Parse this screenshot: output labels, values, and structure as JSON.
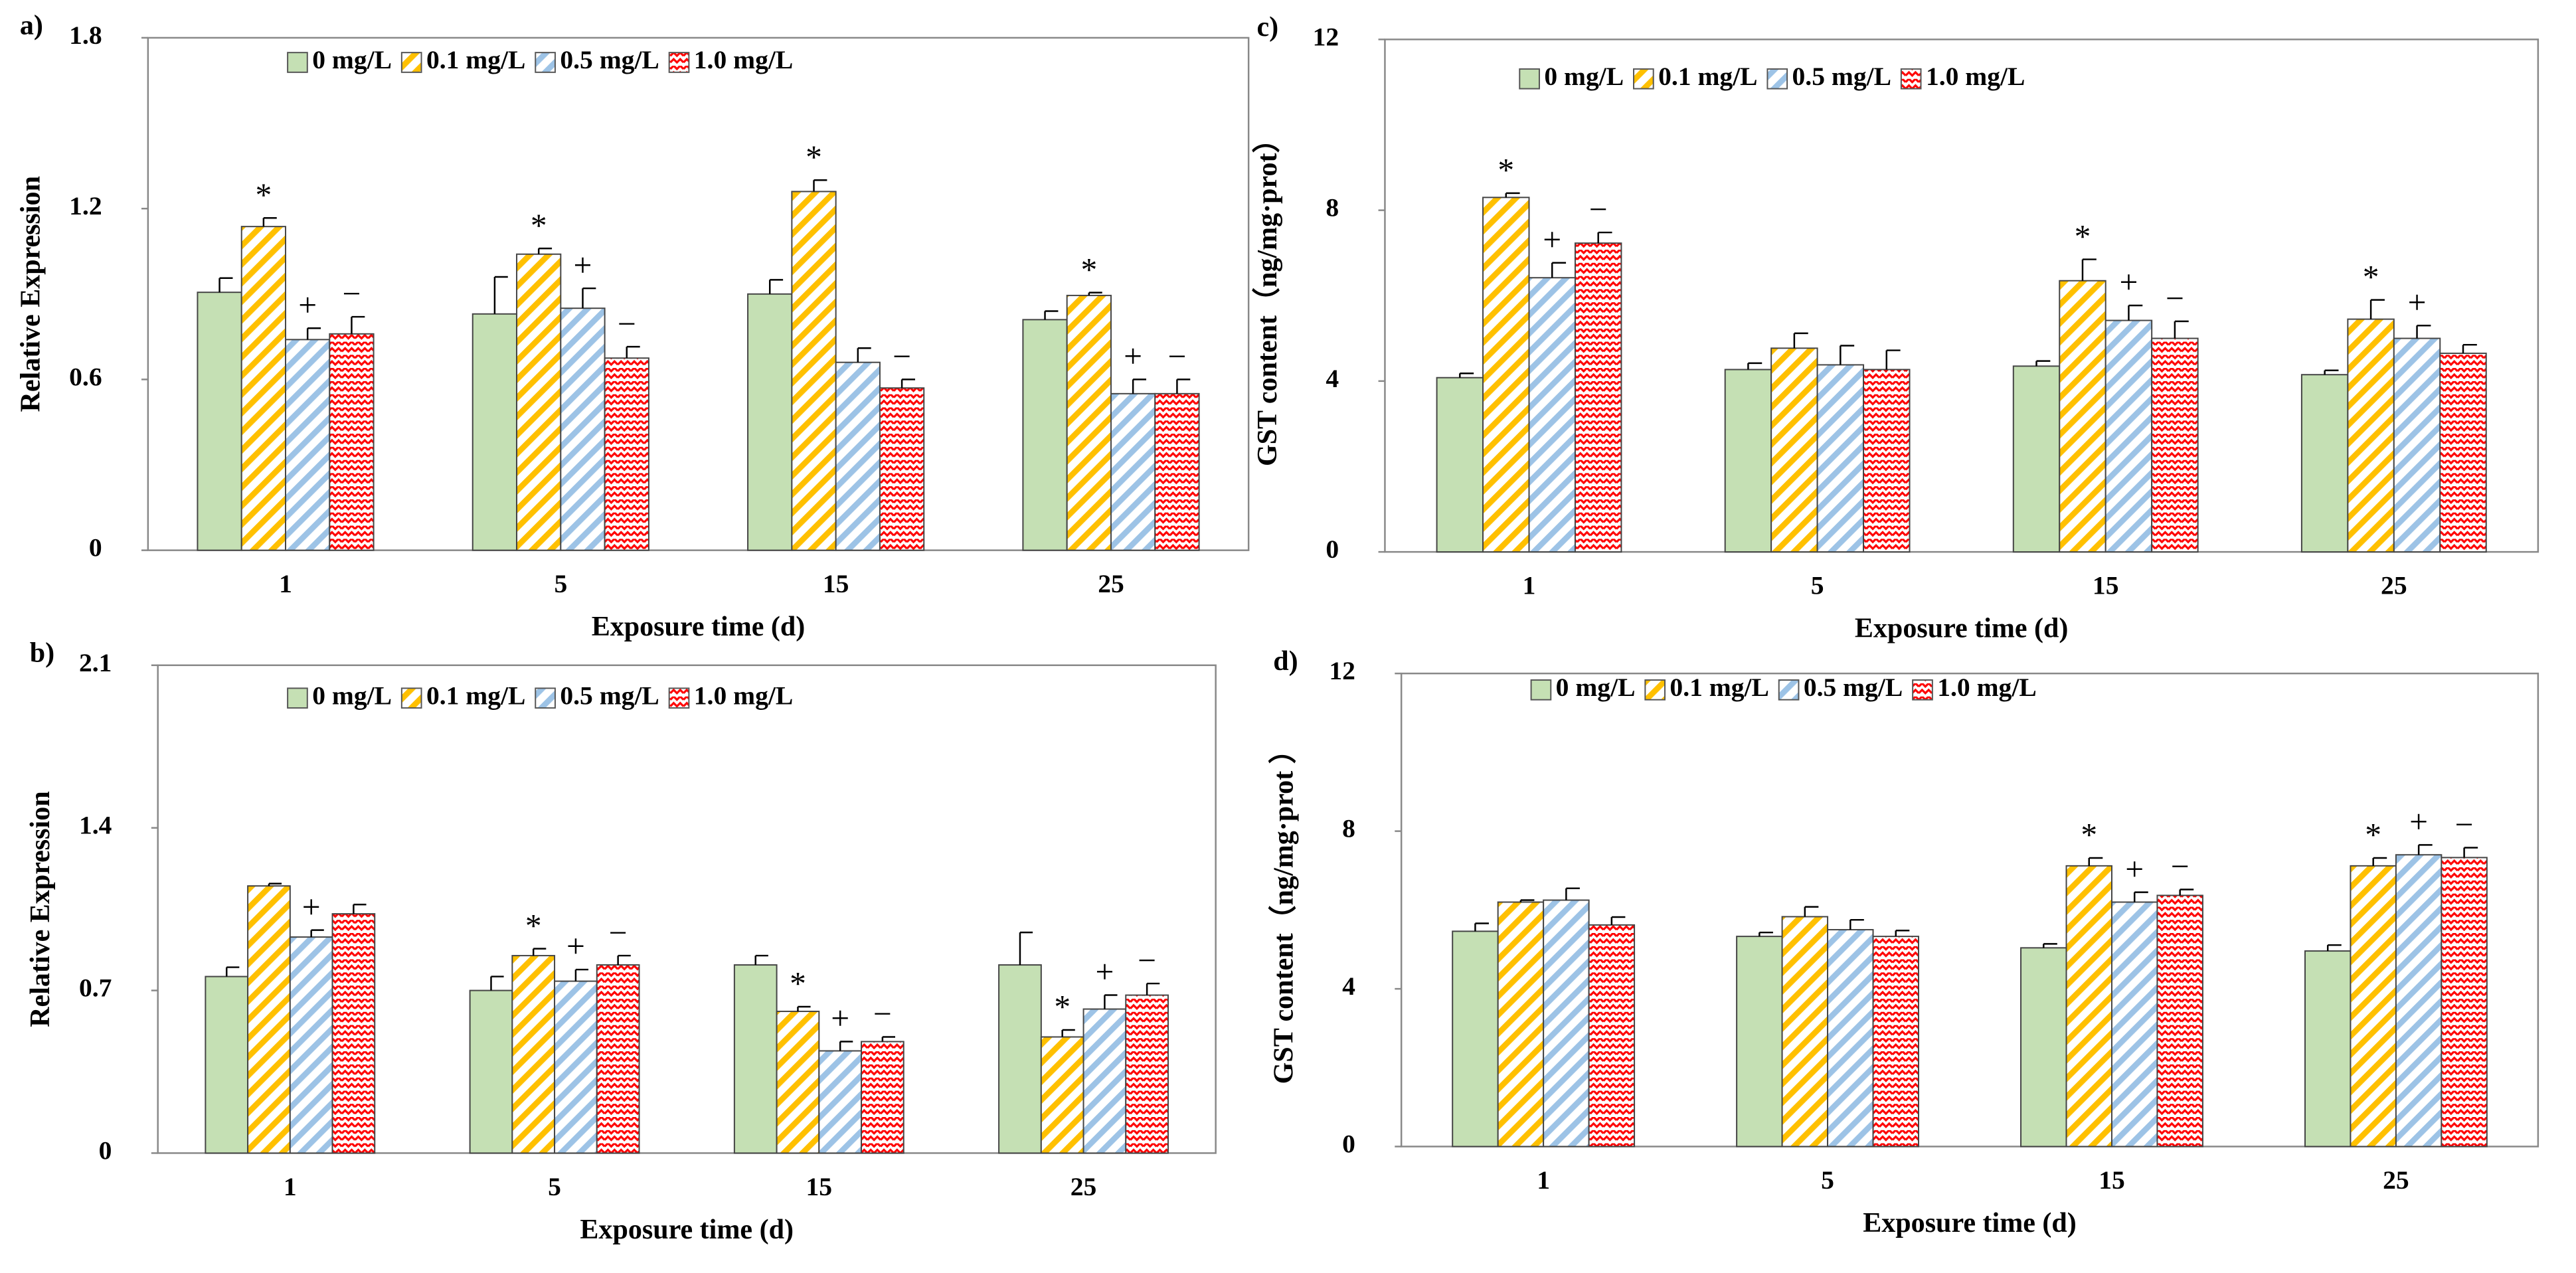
{
  "chart_data": [
    {
      "type": "bar",
      "panel_label": "a)",
      "ylabel": "Relative Expression",
      "xlabel": "Exposure time (d)",
      "categories": [
        "1",
        "5",
        "15",
        "25"
      ],
      "ylim": [
        0,
        1.8
      ],
      "yticks": [
        0,
        0.6,
        1.2,
        1.8
      ],
      "series": [
        {
          "name": "0 mg/L",
          "color": "#c5e0b4",
          "hatch": "none",
          "values": [
            0.906,
            0.83,
            0.9,
            0.81
          ],
          "errors": [
            0.05,
            0.13,
            0.05,
            0.03
          ],
          "annotations": [
            null,
            null,
            null,
            null
          ]
        },
        {
          "name": "0.1 mg/L",
          "color": "#ffc000",
          "hatch": "diagonal",
          "values": [
            1.137,
            1.04,
            1.26,
            0.895
          ],
          "errors": [
            0.03,
            0.02,
            0.04,
            0.01
          ],
          "annotations": [
            "*",
            "*",
            "*",
            "*"
          ]
        },
        {
          "name": "0.5 mg/L",
          "color": "#9dc3e6",
          "hatch": "diagonal",
          "values": [
            0.74,
            0.85,
            0.66,
            0.55
          ],
          "errors": [
            0.04,
            0.07,
            0.05,
            0.05
          ],
          "annotations": [
            "+",
            "+",
            null,
            "+"
          ]
        },
        {
          "name": "1.0 mg/L",
          "color": "#ff0000",
          "hatch": "wavy",
          "values": [
            0.76,
            0.675,
            0.57,
            0.55
          ],
          "errors": [
            0.06,
            0.04,
            0.03,
            0.05
          ],
          "annotations": [
            "−",
            "−",
            "−",
            "−"
          ]
        }
      ]
    },
    {
      "type": "bar",
      "panel_label": "b)",
      "ylabel": "Relative Expression",
      "xlabel": "Exposure time (d)",
      "categories": [
        "1",
        "5",
        "15",
        "25"
      ],
      "ylim": [
        0,
        2.1
      ],
      "yticks": [
        0,
        0.7,
        1.4,
        2.1
      ],
      "series": [
        {
          "name": "0 mg/L",
          "color": "#c5e0b4",
          "hatch": "none",
          "values": [
            0.76,
            0.7,
            0.81,
            0.81
          ],
          "errors": [
            0.04,
            0.06,
            0.04,
            0.14
          ],
          "annotations": [
            null,
            null,
            null,
            null
          ]
        },
        {
          "name": "0.1 mg/L",
          "color": "#ffc000",
          "hatch": "diagonal",
          "values": [
            1.15,
            0.85,
            0.61,
            0.5
          ],
          "errors": [
            0.01,
            0.03,
            0.02,
            0.03
          ],
          "annotations": [
            null,
            "*",
            "*",
            "*"
          ]
        },
        {
          "name": "0.5 mg/L",
          "color": "#9dc3e6",
          "hatch": "diagonal",
          "values": [
            0.93,
            0.74,
            0.44,
            0.62
          ],
          "errors": [
            0.03,
            0.05,
            0.04,
            0.06
          ],
          "annotations": [
            "+",
            "+",
            "+",
            "+"
          ]
        },
        {
          "name": "1.0 mg/L",
          "color": "#ff0000",
          "hatch": "wavy",
          "values": [
            1.03,
            0.81,
            0.48,
            0.68
          ],
          "errors": [
            0.04,
            0.04,
            0.02,
            0.05
          ],
          "annotations": [
            null,
            "−",
            "−",
            "−"
          ]
        }
      ]
    },
    {
      "type": "bar",
      "panel_label": "c)",
      "ylabel": "GST content（ng/mg·prot）",
      "xlabel": "Exposure time (d)",
      "categories": [
        "1",
        "5",
        "15",
        "25"
      ],
      "ylim": [
        0,
        12
      ],
      "yticks": [
        0,
        4,
        8,
        12
      ],
      "series": [
        {
          "name": "0 mg/L",
          "color": "#c5e0b4",
          "hatch": "none",
          "values": [
            4.08,
            4.27,
            4.35,
            4.15
          ],
          "errors": [
            0.1,
            0.15,
            0.12,
            0.1
          ],
          "annotations": [
            null,
            null,
            null,
            null
          ]
        },
        {
          "name": "0.1 mg/L",
          "color": "#ffc000",
          "hatch": "diagonal",
          "values": [
            8.3,
            4.77,
            6.35,
            5.45
          ],
          "errors": [
            0.1,
            0.35,
            0.5,
            0.45
          ],
          "annotations": [
            "*",
            null,
            "*",
            "*"
          ]
        },
        {
          "name": "0.5 mg/L",
          "color": "#9dc3e6",
          "hatch": "diagonal",
          "values": [
            6.42,
            4.38,
            5.42,
            5.0
          ],
          "errors": [
            0.35,
            0.45,
            0.35,
            0.3
          ],
          "annotations": [
            "+",
            null,
            "+",
            "+"
          ]
        },
        {
          "name": "1.0 mg/L",
          "color": "#ff0000",
          "hatch": "wavy",
          "values": [
            7.23,
            4.27,
            5.0,
            4.65
          ],
          "errors": [
            0.25,
            0.45,
            0.4,
            0.2
          ],
          "annotations": [
            "−",
            null,
            "−",
            null
          ]
        }
      ]
    },
    {
      "type": "bar",
      "panel_label": "d)",
      "ylabel": "GST content（ng/mg·prot ）",
      "xlabel": "Exposure time (d)",
      "categories": [
        "1",
        "5",
        "15",
        "25"
      ],
      "ylim": [
        0,
        12
      ],
      "yticks": [
        0,
        4,
        8,
        12
      ],
      "series": [
        {
          "name": "0 mg/L",
          "color": "#c5e0b4",
          "hatch": "none",
          "values": [
            5.46,
            5.33,
            5.04,
            4.96
          ],
          "errors": [
            0.2,
            0.1,
            0.1,
            0.15
          ],
          "annotations": [
            null,
            null,
            null,
            null
          ]
        },
        {
          "name": "0.1 mg/L",
          "color": "#ffc000",
          "hatch": "diagonal",
          "values": [
            6.2,
            5.83,
            7.12,
            7.12
          ],
          "errors": [
            0.05,
            0.25,
            0.2,
            0.2
          ],
          "annotations": [
            null,
            null,
            "*",
            "*"
          ]
        },
        {
          "name": "0.5 mg/L",
          "color": "#9dc3e6",
          "hatch": "diagonal",
          "values": [
            6.25,
            5.5,
            6.2,
            7.4
          ],
          "errors": [
            0.3,
            0.25,
            0.25,
            0.25
          ],
          "annotations": [
            null,
            null,
            "+",
            "+"
          ]
        },
        {
          "name": "1.0 mg/L",
          "color": "#ff0000",
          "hatch": "wavy",
          "values": [
            5.62,
            5.33,
            6.37,
            7.33
          ],
          "errors": [
            0.2,
            0.15,
            0.15,
            0.25
          ],
          "annotations": [
            null,
            null,
            "−",
            "−"
          ]
        }
      ]
    }
  ]
}
